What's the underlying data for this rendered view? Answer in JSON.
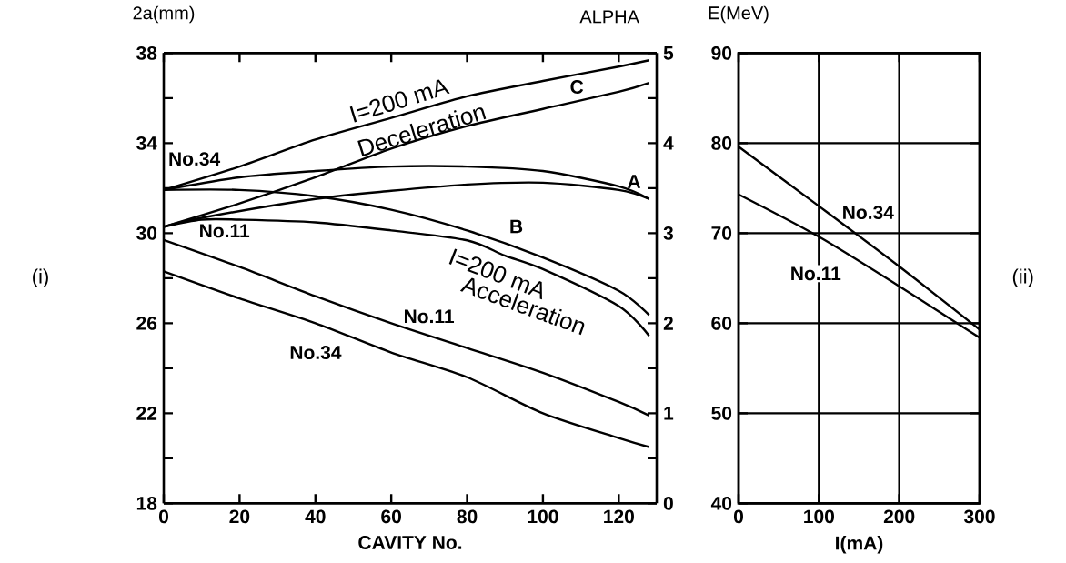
{
  "chart_data": [
    {
      "type": "line",
      "xlabel": "CAVITY  No.",
      "ylabel": "2a(mm)",
      "y2label": "ALPHA",
      "xlim": [
        0,
        130
      ],
      "xticks": [
        0,
        20,
        40,
        60,
        80,
        100,
        120
      ],
      "ylim": [
        18,
        38
      ],
      "yticks": [
        18,
        {
          "value": 20,
          "label": null
        },
        22,
        {
          "value": 24,
          "label": null
        },
        26,
        {
          "value": 28,
          "label": null
        },
        30,
        {
          "value": 32,
          "label": null
        },
        34,
        {
          "value": 36,
          "label": null
        },
        38
      ],
      "y2lim": [
        0,
        5
      ],
      "y2ticks": [
        0,
        {
          "value": 0.5,
          "label": null
        },
        1,
        {
          "value": 1.5,
          "label": null
        },
        2,
        {
          "value": 2.5,
          "label": null
        },
        3,
        {
          "value": 3.5,
          "label": null
        },
        4,
        {
          "value": 4.5,
          "label": null
        },
        5
      ],
      "series": [
        {
          "color": "#000000",
          "x": [
            0,
            20,
            40,
            60,
            80,
            100,
            120,
            128
          ],
          "values": [
            29.7,
            28.5,
            27.2,
            26.0,
            24.9,
            23.8,
            22.5,
            21.9
          ]
        },
        {
          "color": "#000000",
          "x": [
            0,
            20,
            40,
            60,
            80,
            100,
            120,
            128
          ],
          "values": [
            28.3,
            27.1,
            26.0,
            24.7,
            23.6,
            22.0,
            20.9,
            20.5
          ]
        },
        {
          "color": "#000000",
          "axis": "y2",
          "x": [
            0,
            20,
            40,
            60,
            80,
            100,
            120,
            128
          ],
          "values": [
            3.48,
            3.74,
            4.04,
            4.28,
            4.52,
            4.69,
            4.85,
            4.92
          ]
        },
        {
          "color": "#000000",
          "axis": "y2",
          "x": [
            0,
            20,
            40,
            60,
            80,
            100,
            120,
            128
          ],
          "values": [
            3.07,
            3.33,
            3.62,
            3.94,
            4.19,
            4.38,
            4.57,
            4.67
          ]
        },
        {
          "color": "#000000",
          "axis": "y2",
          "x": [
            0,
            20,
            40,
            60,
            80,
            100,
            120,
            128
          ],
          "values": [
            3.48,
            3.62,
            3.69,
            3.74,
            3.74,
            3.69,
            3.52,
            3.38
          ]
        },
        {
          "color": "#000000",
          "axis": "y2",
          "x": [
            0,
            10,
            40,
            60,
            80,
            100,
            120,
            128
          ],
          "values": [
            3.07,
            3.17,
            3.38,
            3.47,
            3.54,
            3.56,
            3.48,
            3.38
          ]
        },
        {
          "color": "#000000",
          "axis": "y2",
          "x": [
            0,
            20,
            40,
            60,
            80,
            100,
            120,
            128
          ],
          "values": [
            3.48,
            3.48,
            3.41,
            3.26,
            3.03,
            2.73,
            2.36,
            2.09
          ]
        },
        {
          "color": "#000000",
          "axis": "y2",
          "x": [
            0,
            10,
            20,
            40,
            60,
            80,
            90,
            100,
            120,
            128
          ],
          "values": [
            3.07,
            3.15,
            3.15,
            3.12,
            3.03,
            2.92,
            2.75,
            2.6,
            2.19,
            1.86
          ]
        }
      ],
      "annotations": [
        "I=200 mA",
        "Deceleration",
        "C",
        "A",
        "B",
        "I=200 mA",
        "Acceleration",
        "No.34",
        "No.11",
        "No.11",
        "No.34",
        "(i)"
      ]
    },
    {
      "type": "line",
      "xlabel": "I(mA)",
      "ylabel": "E(MeV)",
      "grid": true,
      "xlim": [
        0,
        300
      ],
      "xticks": [
        0,
        100,
        200,
        300
      ],
      "ylim": [
        40,
        90
      ],
      "yticks": [
        40,
        50,
        60,
        70,
        80,
        90
      ],
      "series": [
        {
          "color": "#000000",
          "x": [
            0,
            100,
            200,
            300
          ],
          "values": [
            79.6,
            73.0,
            66.3,
            59.3
          ]
        },
        {
          "color": "#000000",
          "x": [
            0,
            100,
            200,
            300
          ],
          "values": [
            74.3,
            69.6,
            64.1,
            58.4
          ]
        }
      ],
      "annotations": [
        "No.34",
        "No.11",
        "(ii)"
      ]
    }
  ]
}
